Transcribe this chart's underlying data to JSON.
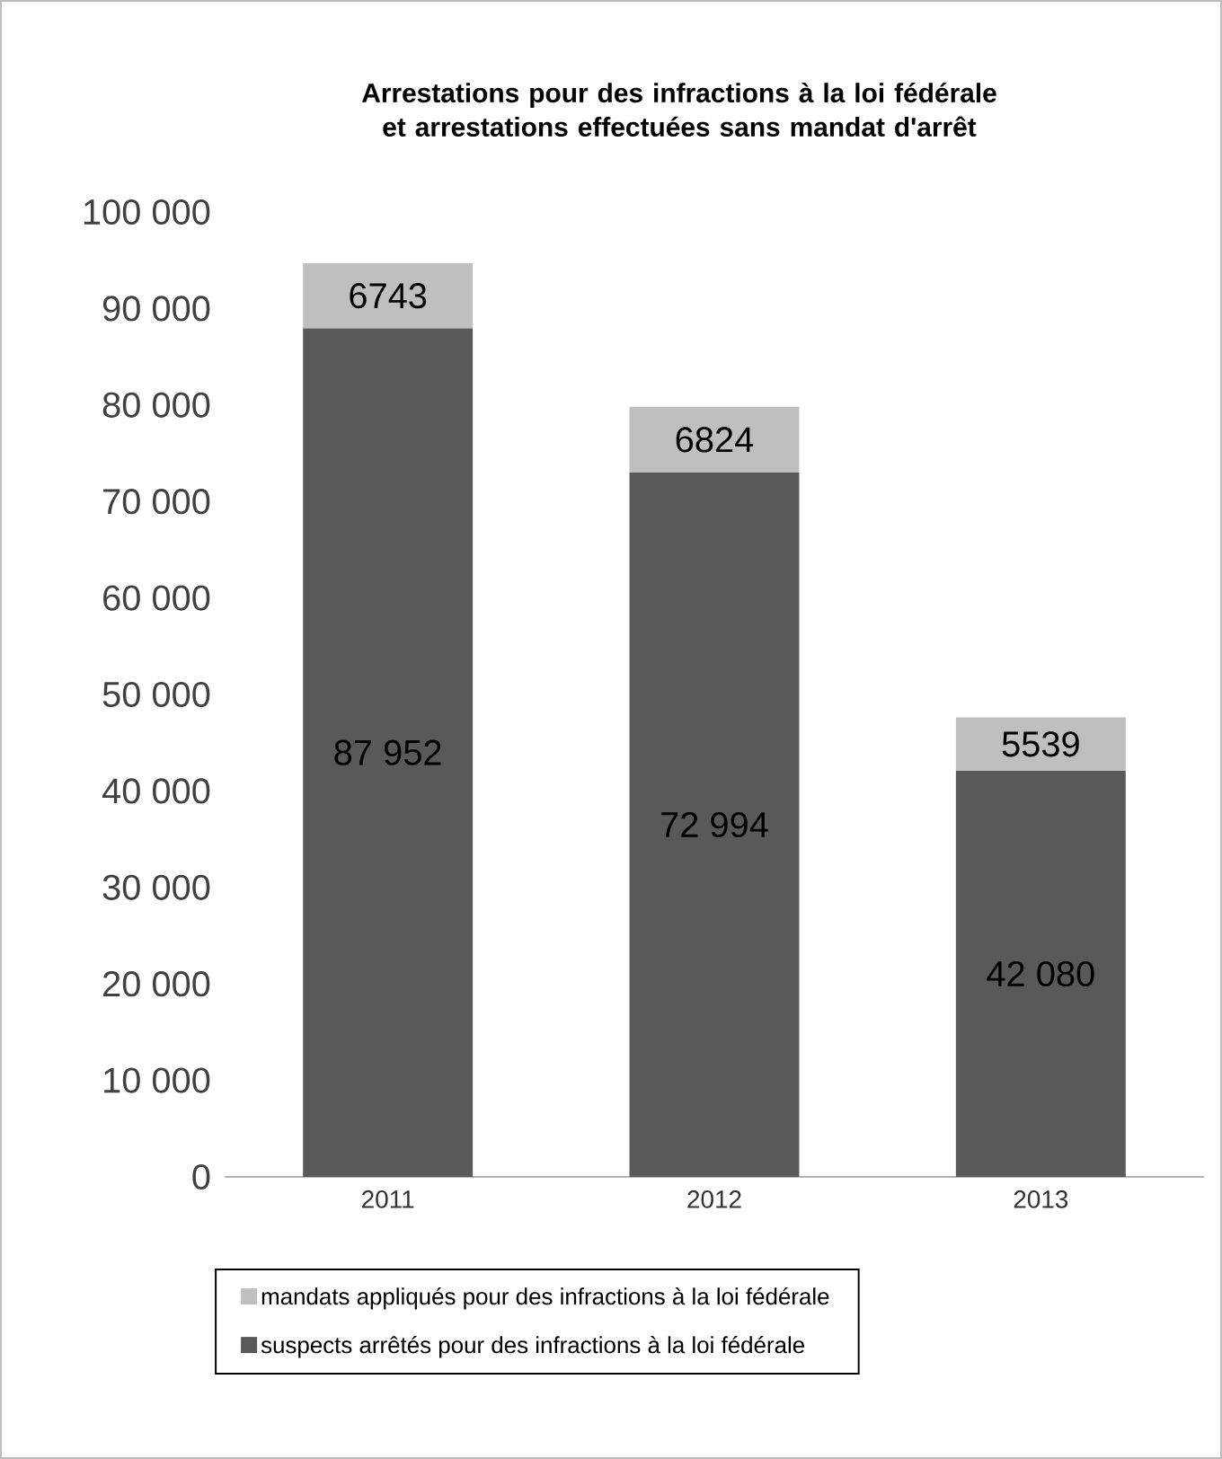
{
  "chart_data": {
    "type": "bar",
    "stacked": true,
    "title": "Arrestations pour des infractions à la loi fédérale et arrestations effectuées sans mandat d'arrêt",
    "categories": [
      "2011",
      "2012",
      "2013"
    ],
    "series": [
      {
        "name": "suspects arrêtés pour des infractions à la loi fédérale",
        "color": "#595959",
        "values": [
          87952,
          72994,
          42080
        ],
        "value_labels": [
          "87 952",
          "72 994",
          "42 080"
        ]
      },
      {
        "name": "mandats appliqués pour des infractions à la loi fédérale",
        "color": "#bfbfbf",
        "values": [
          6743,
          6824,
          5539
        ],
        "value_labels": [
          "6743",
          "6824",
          "5539"
        ]
      }
    ],
    "ylim": [
      0,
      100000
    ],
    "yticks": [
      0,
      {
        "value": 10000,
        "label": "10 000"
      },
      {
        "value": 20000,
        "label": "20 000"
      },
      {
        "value": 30000,
        "label": "30 000"
      },
      {
        "value": 40000,
        "label": "40 000"
      },
      {
        "value": 50000,
        "label": "50 000"
      },
      {
        "value": 60000,
        "label": "60 000"
      },
      {
        "value": 70000,
        "label": "70 000"
      },
      {
        "value": 80000,
        "label": "80 000"
      },
      {
        "value": 90000,
        "label": "90 000"
      },
      {
        "value": 100000,
        "label": "100 000"
      }
    ],
    "grid": false,
    "legend": "bottom"
  }
}
